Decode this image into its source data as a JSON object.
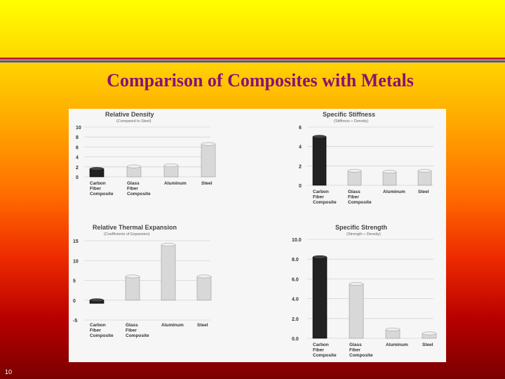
{
  "slide": {
    "title": "Comparison of Composites with Metals",
    "page_number": "10"
  },
  "chart_data": [
    {
      "type": "bar",
      "title": "Relative Density",
      "subtitle": "(Compared to Steel)",
      "categories": [
        [
          "Carbon",
          "Fiber",
          "Composite"
        ],
        [
          "Glass",
          "Fiber",
          "Composite"
        ],
        [
          "Aluminum"
        ],
        [
          "Steel"
        ]
      ],
      "values": [
        1.6,
        2.1,
        2.3,
        6.6
      ],
      "bar_colors": [
        "#222222",
        "#d8d8d8",
        "#d8d8d8",
        "#d8d8d8"
      ],
      "ylim": [
        0,
        10
      ],
      "yticks": [
        "0",
        "2",
        "4",
        "6",
        "8",
        "10"
      ],
      "ytick_values": [
        0,
        2,
        4,
        6,
        8,
        10
      ]
    },
    {
      "type": "bar",
      "title": "Specific Stiffness",
      "subtitle": "(Stiffness ÷ Density)",
      "categories": [
        [
          "Carbon",
          "Fiber",
          "Composite"
        ],
        [
          "Glass",
          "Fiber",
          "Composite"
        ],
        [
          "Aluminum"
        ],
        [
          "Steel"
        ]
      ],
      "values": [
        5.0,
        1.5,
        1.4,
        1.5
      ],
      "bar_colors": [
        "#222222",
        "#d8d8d8",
        "#d8d8d8",
        "#d8d8d8"
      ],
      "ylim": [
        0,
        6
      ],
      "yticks": [
        "0",
        "2",
        "4",
        "6"
      ],
      "ytick_values": [
        0,
        2,
        4,
        6
      ]
    },
    {
      "type": "bar",
      "title": "Relative Thermal Expansion",
      "subtitle": "(Coefficients of Expansion)",
      "categories": [
        [
          "Carbon",
          "Fiber",
          "Composite"
        ],
        [
          "Glass",
          "Fiber",
          "Composite"
        ],
        [
          "Aluminum"
        ],
        [
          "Steel"
        ]
      ],
      "values": [
        -0.8,
        6.0,
        14.0,
        6.0
      ],
      "bar_colors": [
        "#222222",
        "#d8d8d8",
        "#d8d8d8",
        "#d8d8d8"
      ],
      "ylim": [
        -5,
        15
      ],
      "yticks": [
        "-5",
        "0",
        "5",
        "10",
        "15"
      ],
      "ytick_values": [
        -5,
        0,
        5,
        10,
        15
      ]
    },
    {
      "type": "bar",
      "title": "Specific Strength",
      "subtitle": "(Strength ÷ Density)",
      "categories": [
        [
          "Carbon",
          "Fiber",
          "Composite"
        ],
        [
          "Glass",
          "Fiber",
          "Composite"
        ],
        [
          "Aluminum"
        ],
        [
          "Steel"
        ]
      ],
      "values": [
        8.2,
        5.5,
        0.9,
        0.5
      ],
      "bar_colors": [
        "#222222",
        "#d8d8d8",
        "#d8d8d8",
        "#d8d8d8"
      ],
      "ylim": [
        0,
        10
      ],
      "yticks": [
        "0.0",
        "2.0",
        "4.0",
        "6.0",
        "8.0",
        "10.0"
      ],
      "ytick_values": [
        0,
        2,
        4,
        6,
        8,
        10
      ]
    }
  ]
}
